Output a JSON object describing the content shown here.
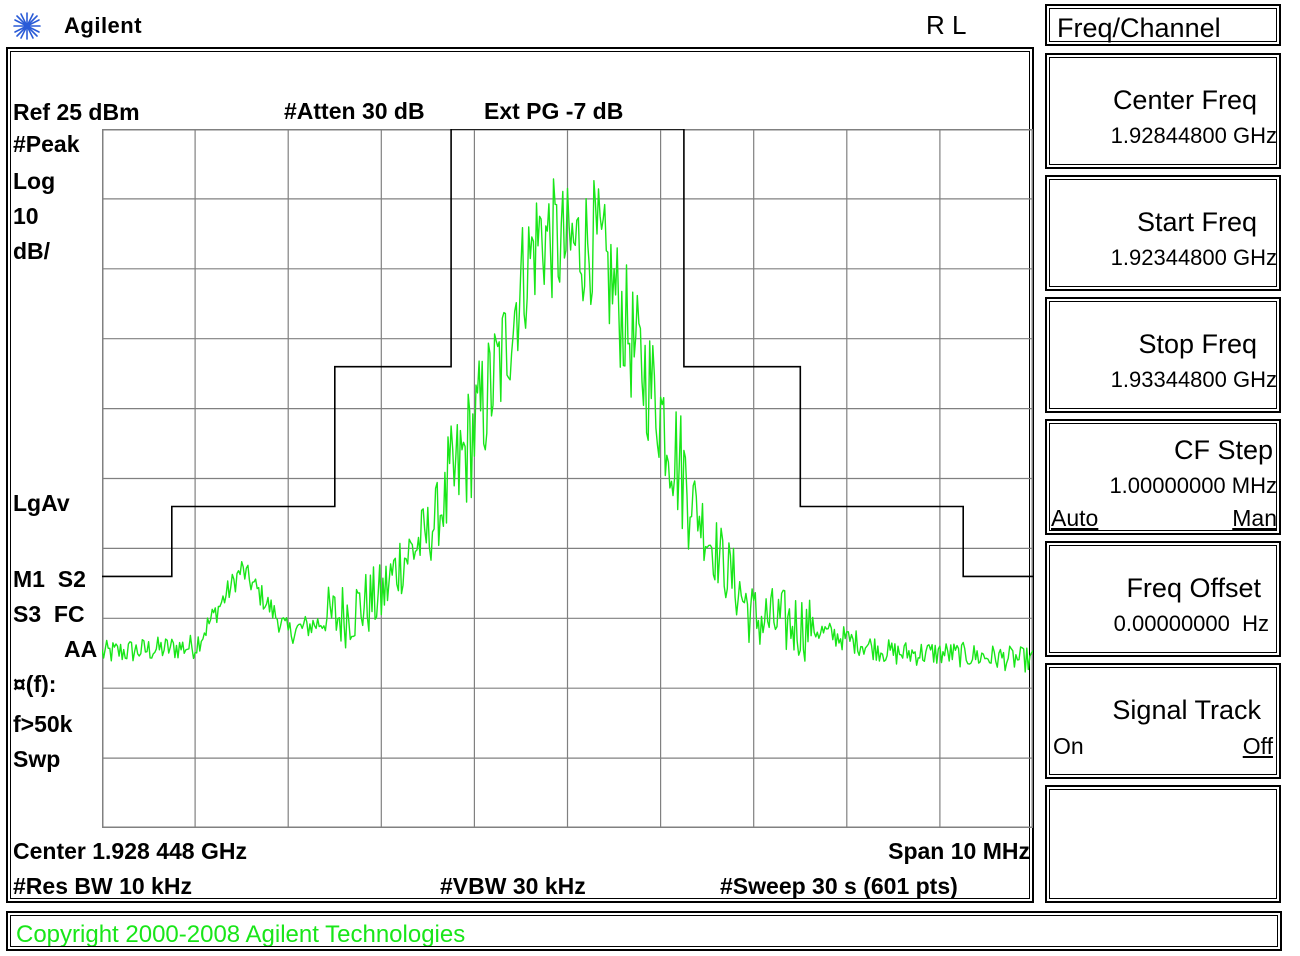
{
  "header": {
    "brand": "Agilent",
    "status": "R L"
  },
  "display": {
    "ref_level": "Ref 25 dBm",
    "attenuation": "#Atten 30 dB",
    "ext_gain": "Ext PG -7 dB",
    "left_annotations": [
      "#Peak",
      "Log",
      "10",
      "dB/",
      "LgAv",
      "M1  S2",
      "S3  FC",
      "AA",
      "¤(f):",
      "f>50k",
      "Swp"
    ],
    "center": "Center 1.928 448 GHz",
    "span": "Span 10 MHz",
    "res_bw": "#Res BW 10 kHz",
    "vbw": "#VBW 30 kHz",
    "sweep": "#Sweep 30 s (601 pts)"
  },
  "softkeys": {
    "menu_title": "Freq/Channel",
    "center_freq": {
      "label": "Center Freq",
      "value": "1.92844800 GHz"
    },
    "start_freq": {
      "label": "Start Freq",
      "value": "1.92344800 GHz"
    },
    "stop_freq": {
      "label": "Stop Freq",
      "value": "1.93344800 GHz"
    },
    "cf_step": {
      "label": "CF Step",
      "value": "1.00000000 MHz",
      "opt_auto": "Auto",
      "opt_man": "Man"
    },
    "freq_offset": {
      "label": "Freq Offset",
      "value": "0.00000000  Hz"
    },
    "signal_track": {
      "label": "Signal Track",
      "opt_on": "On",
      "opt_off": "Off"
    },
    "empty": ""
  },
  "footer": {
    "copyright": "Copyright 2000-2008 Agilent Technologies"
  },
  "colors": {
    "trace": "#19e619",
    "graticule": "#808080",
    "mask": "#000000",
    "background": "#ffffff"
  },
  "chart_data": {
    "type": "line",
    "xlabel": "",
    "ylabel": "",
    "x_range_mhz": [
      -5,
      5
    ],
    "ylim_dbm": [
      -75,
      25
    ],
    "grid": true,
    "series": [
      {
        "role": "spectrum-trace",
        "x_mhz": [
          -5.0,
          -4.0,
          -3.5,
          -3.0,
          -2.5,
          -2.0,
          -1.8,
          -1.5,
          -1.2,
          -1.0,
          -0.7,
          -0.5,
          -0.3,
          0.0,
          0.3,
          0.5,
          0.7,
          1.0,
          1.2,
          1.5,
          1.8,
          2.0,
          2.5,
          3.0,
          3.5,
          4.0,
          5.0
        ],
        "y_dbm": [
          -50,
          -49,
          -38,
          -47,
          -45,
          -42,
          -37,
          -33,
          -25,
          -18,
          -8,
          3,
          10,
          8,
          9,
          2,
          -6,
          -15,
          -23,
          -33,
          -40,
          -45,
          -46,
          -48,
          -50,
          -50,
          -51
        ]
      },
      {
        "role": "limit-mask",
        "x_mhz": [
          -5.0,
          -4.25,
          -4.25,
          -2.5,
          -2.5,
          -1.25,
          -1.25,
          1.25,
          1.25,
          2.5,
          2.5,
          4.25,
          4.25,
          5.0
        ],
        "y_dbm": [
          -39,
          -39,
          -29,
          -29,
          -9,
          -9,
          25,
          25,
          -9,
          -9,
          -29,
          -29,
          -39,
          -39
        ]
      }
    ]
  }
}
